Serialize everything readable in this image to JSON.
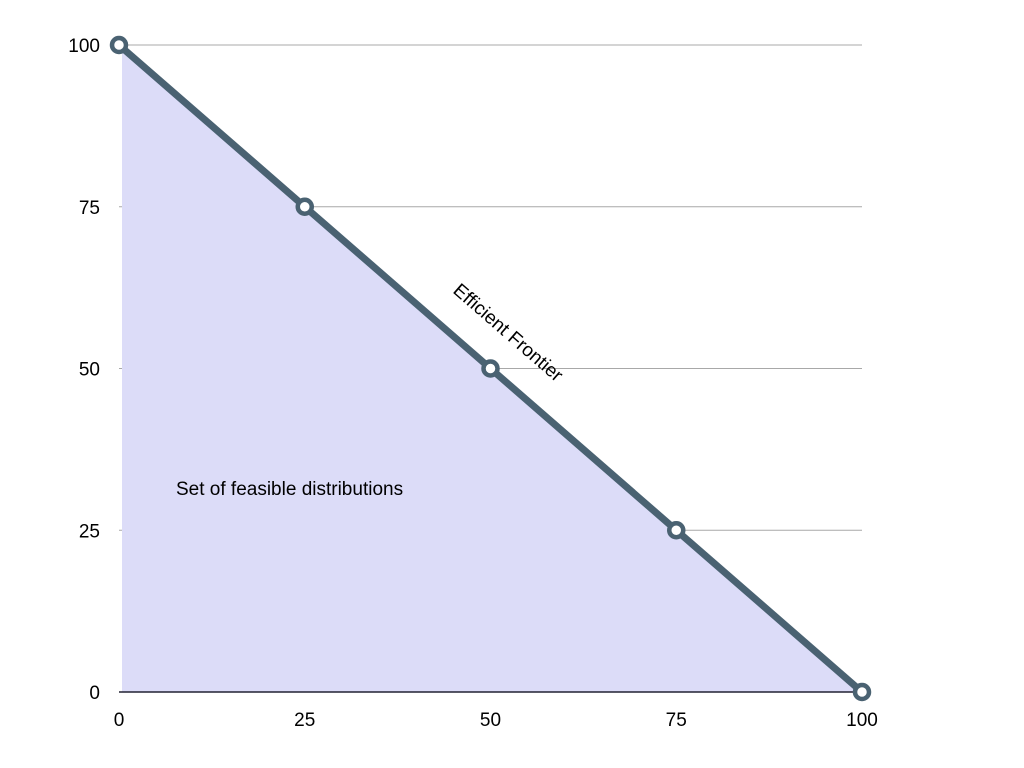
{
  "chart_data": {
    "type": "area",
    "title": "",
    "xlabel": "",
    "ylabel": "",
    "xlim": [
      0,
      100
    ],
    "ylim": [
      0,
      100
    ],
    "grid": true,
    "x_ticks": [
      "0",
      "25",
      "50",
      "75",
      "100"
    ],
    "y_ticks": [
      "0",
      "25",
      "50",
      "75",
      "100"
    ],
    "series": [
      {
        "name": "Efficient Frontier",
        "x": [
          0,
          25,
          50,
          75,
          100
        ],
        "y": [
          100,
          75,
          50,
          25,
          0
        ]
      }
    ],
    "annotations": {
      "frontier_label": "Efficient Frontier",
      "region_label": "Set of feasible distributions"
    },
    "colors": {
      "fill": "#dcdcf8",
      "line": "#4a6272",
      "grid": "#a8a8a8",
      "axis": "#222233"
    }
  }
}
